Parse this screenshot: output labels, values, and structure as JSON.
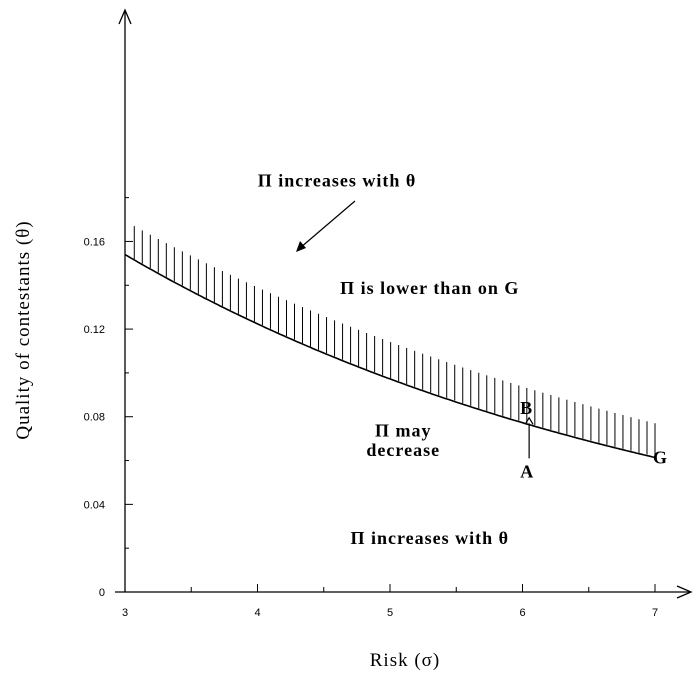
{
  "chart_data": {
    "type": "line",
    "title": "",
    "xlabel": "Risk (σ)",
    "ylabel": "Quality of contestants (θ)",
    "xlim": [
      3,
      7.6
    ],
    "ylim": [
      0,
      0.2
    ],
    "x_ticks": [
      3,
      4,
      5,
      6,
      7
    ],
    "y_ticks": [
      0,
      0.04,
      0.08,
      0.12,
      0.16
    ],
    "x_tick_labels": [
      "3",
      "4",
      "5",
      "6",
      "7"
    ],
    "y_tick_labels": [
      "0",
      "0.04",
      "0.08",
      "0.12",
      "0.16"
    ],
    "grid": false,
    "series": [
      {
        "name": "G",
        "x": [
          3,
          3.25,
          3.5,
          3.75,
          4,
          4.25,
          4.5,
          4.75,
          5,
          5.25,
          5.5,
          5.75,
          6,
          6.25,
          6.5,
          6.75,
          7
        ],
        "y": [
          0.154,
          0.1445,
          0.1358,
          0.1277,
          0.1202,
          0.1132,
          0.1067,
          0.1006,
          0.0949,
          0.0896,
          0.0847,
          0.0801,
          0.0758,
          0.0718,
          0.0681,
          0.0646,
          0.0614
        ]
      }
    ],
    "shaded_band": {
      "x": [
        3.07,
        7.0
      ],
      "upper": [
        0.167,
        0.077
      ],
      "hatch": "vertical"
    },
    "annotations": [
      {
        "text": "Π increases with θ",
        "x": 4.6,
        "y": 0.185
      },
      {
        "text": "Π is lower than on G",
        "x": 5.3,
        "y": 0.136
      },
      {
        "text": "Π may",
        "x": 5.1,
        "y": 0.071
      },
      {
        "text": "decrease",
        "x": 5.1,
        "y": 0.062
      },
      {
        "text": "Π increases with θ",
        "x": 5.3,
        "y": 0.022
      }
    ],
    "points": [
      {
        "label": "A",
        "x": 6.07,
        "y": 0.055
      },
      {
        "label": "B",
        "x": 6.05,
        "y": 0.083
      }
    ],
    "curve_label": {
      "text": "G",
      "x": 7.3,
      "y": 0.061
    }
  }
}
